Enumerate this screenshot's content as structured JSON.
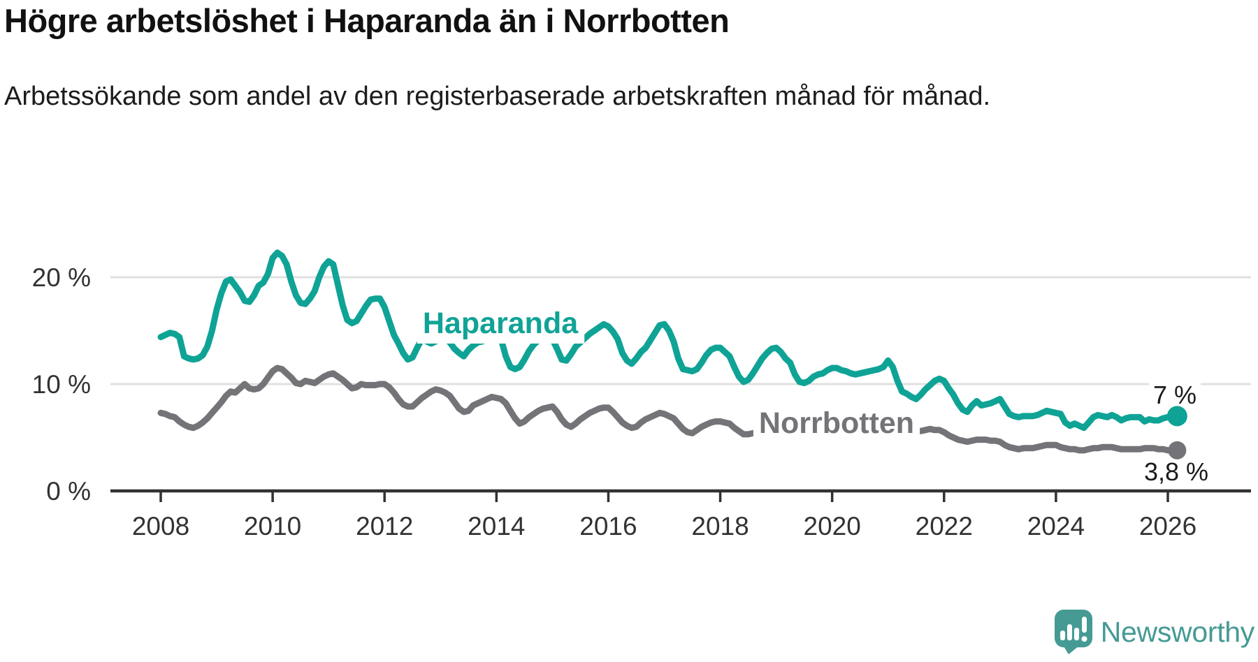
{
  "title": "Högre arbetslöshet i Haparanda än i Norrbotten",
  "subtitle": "Arbetssökande som andel av den registerbaserade arbetskraften månad för månad.",
  "branding": {
    "logo_text": "Newsworthy"
  },
  "colors": {
    "haparanda": "#0fa396",
    "norrbotten": "#747478",
    "axis": "#323232",
    "gridline": "#e0e0e0",
    "value_label": "#1a1a1a",
    "logo": "#459a94",
    "background": "#ffffff"
  },
  "chart_data": {
    "type": "line",
    "title": "Högre arbetslöshet i Haparanda än i Norrbotten",
    "subtitle": "Arbetssökande som andel av den registerbaserade arbetskraften månad för månad.",
    "x_start": 2008.0,
    "x_step": "monthly",
    "x_axis_ticks": [
      2008,
      2010,
      2012,
      2014,
      2016,
      2018,
      2020,
      2022,
      2024,
      2026
    ],
    "y_axis": {
      "ticks": [
        0,
        10,
        20
      ],
      "unit": "%",
      "min": 0,
      "max": 23
    },
    "grid": "horizontal-only",
    "legend": "inline-labels",
    "series": [
      {
        "name": "Haparanda",
        "color": "#0fa396",
        "end_label": "7 %",
        "end_value": 7.0,
        "values": [
          14.4,
          14.6,
          14.8,
          14.7,
          14.4,
          12.6,
          12.4,
          12.3,
          12.4,
          12.7,
          13.5,
          15.0,
          17.0,
          18.5,
          19.6,
          19.8,
          19.2,
          18.6,
          17.8,
          17.7,
          18.3,
          19.2,
          19.5,
          20.3,
          21.8,
          22.3,
          22.0,
          21.2,
          19.6,
          18.3,
          17.6,
          17.5,
          18.0,
          18.7,
          20.0,
          21.0,
          21.5,
          21.2,
          19.3,
          17.4,
          16.0,
          15.7,
          15.9,
          16.6,
          17.3,
          17.9,
          18.0,
          18.0,
          17.2,
          15.9,
          14.6,
          13.8,
          12.9,
          12.3,
          12.5,
          13.4,
          14.2,
          14.0,
          13.8,
          14.0,
          14.4,
          14.3,
          13.9,
          13.3,
          12.9,
          12.6,
          13.2,
          13.6,
          13.9,
          14.0,
          14.2,
          14.6,
          14.8,
          14.2,
          12.6,
          11.6,
          11.4,
          11.6,
          12.3,
          13.1,
          13.7,
          14.1,
          14.4,
          14.3,
          14.2,
          13.3,
          12.3,
          12.2,
          12.8,
          13.5,
          13.9,
          14.3,
          14.7,
          15.0,
          15.3,
          15.6,
          15.4,
          14.9,
          14.2,
          12.9,
          12.2,
          11.9,
          12.4,
          13.0,
          13.4,
          14.1,
          14.8,
          15.5,
          15.6,
          15.0,
          14.0,
          12.4,
          11.4,
          11.3,
          11.2,
          11.4,
          12.0,
          12.7,
          13.2,
          13.4,
          13.4,
          13.0,
          12.6,
          11.6,
          10.7,
          10.2,
          10.4,
          11.0,
          11.7,
          12.4,
          12.9,
          13.3,
          13.4,
          13.0,
          12.4,
          12.0,
          10.9,
          10.2,
          10.1,
          10.3,
          10.7,
          10.9,
          11.0,
          11.3,
          11.5,
          11.5,
          11.3,
          11.2,
          11.0,
          10.9,
          11.0,
          11.1,
          11.2,
          11.3,
          11.4,
          11.6,
          12.2,
          11.6,
          10.3,
          9.3,
          9.1,
          8.8,
          8.6,
          9.0,
          9.5,
          9.9,
          10.3,
          10.5,
          10.3,
          9.6,
          9.0,
          8.2,
          7.6,
          7.4,
          8.0,
          8.4,
          8.0,
          8.1,
          8.2,
          8.4,
          8.6,
          7.9,
          7.2,
          7.0,
          6.9,
          7.0,
          7.0,
          7.0,
          7.1,
          7.3,
          7.5,
          7.4,
          7.3,
          7.2,
          6.4,
          6.1,
          6.3,
          6.1,
          5.9,
          6.4,
          6.9,
          7.1,
          7.0,
          6.9,
          7.1,
          6.9,
          6.6,
          6.8,
          6.9,
          6.9,
          6.9,
          6.5,
          6.7,
          6.6,
          6.6,
          6.8,
          6.9,
          7.0,
          7.0
        ]
      },
      {
        "name": "Norrbotten",
        "color": "#747478",
        "end_label": "3,8 %",
        "end_value": 3.8,
        "values": [
          7.3,
          7.2,
          7.0,
          6.9,
          6.5,
          6.2,
          6.0,
          5.9,
          6.1,
          6.4,
          6.8,
          7.3,
          7.8,
          8.3,
          8.9,
          9.3,
          9.2,
          9.6,
          10.0,
          9.6,
          9.5,
          9.6,
          10.0,
          10.6,
          11.2,
          11.5,
          11.4,
          11.0,
          10.6,
          10.1,
          10.0,
          10.3,
          10.2,
          10.1,
          10.4,
          10.7,
          10.9,
          11.0,
          10.7,
          10.4,
          10.0,
          9.6,
          9.7,
          10.0,
          9.9,
          9.9,
          9.9,
          10.0,
          10.0,
          9.7,
          9.2,
          8.6,
          8.1,
          7.9,
          7.9,
          8.3,
          8.7,
          9.0,
          9.3,
          9.5,
          9.4,
          9.2,
          8.9,
          8.3,
          7.7,
          7.4,
          7.5,
          8.0,
          8.2,
          8.4,
          8.6,
          8.8,
          8.7,
          8.6,
          8.2,
          7.5,
          6.8,
          6.3,
          6.5,
          6.9,
          7.2,
          7.5,
          7.7,
          7.8,
          7.9,
          7.4,
          6.7,
          6.2,
          6.0,
          6.3,
          6.7,
          7.0,
          7.3,
          7.5,
          7.7,
          7.8,
          7.8,
          7.4,
          6.9,
          6.4,
          6.1,
          5.9,
          6.0,
          6.4,
          6.7,
          6.9,
          7.1,
          7.3,
          7.2,
          7.0,
          6.8,
          6.3,
          5.8,
          5.5,
          5.4,
          5.7,
          6.0,
          6.2,
          6.4,
          6.5,
          6.5,
          6.4,
          6.3,
          5.9,
          5.6,
          5.3,
          5.3,
          5.4,
          5.5,
          5.6,
          5.7,
          5.8,
          5.8,
          5.7,
          5.6,
          5.5,
          5.4,
          5.3,
          5.3,
          5.4,
          5.4,
          5.5,
          5.6,
          5.7,
          5.7,
          5.8,
          6.0,
          6.2,
          6.3,
          6.4,
          6.4,
          6.3,
          6.3,
          6.2,
          6.2,
          6.1,
          6.1,
          6.0,
          5.9,
          5.8,
          5.7,
          5.6,
          5.6,
          5.6,
          5.7,
          5.8,
          5.7,
          5.7,
          5.5,
          5.2,
          5.0,
          4.8,
          4.7,
          4.6,
          4.7,
          4.8,
          4.8,
          4.8,
          4.7,
          4.7,
          4.6,
          4.3,
          4.1,
          4.0,
          3.9,
          4.0,
          4.0,
          4.0,
          4.1,
          4.2,
          4.3,
          4.3,
          4.3,
          4.1,
          4.0,
          3.9,
          3.9,
          3.8,
          3.8,
          3.9,
          4.0,
          4.0,
          4.1,
          4.1,
          4.1,
          4.0,
          3.9,
          3.9,
          3.9,
          3.9,
          3.9,
          4.0,
          4.0,
          4.0,
          3.9,
          3.9,
          3.8,
          3.8,
          3.8
        ]
      }
    ]
  }
}
